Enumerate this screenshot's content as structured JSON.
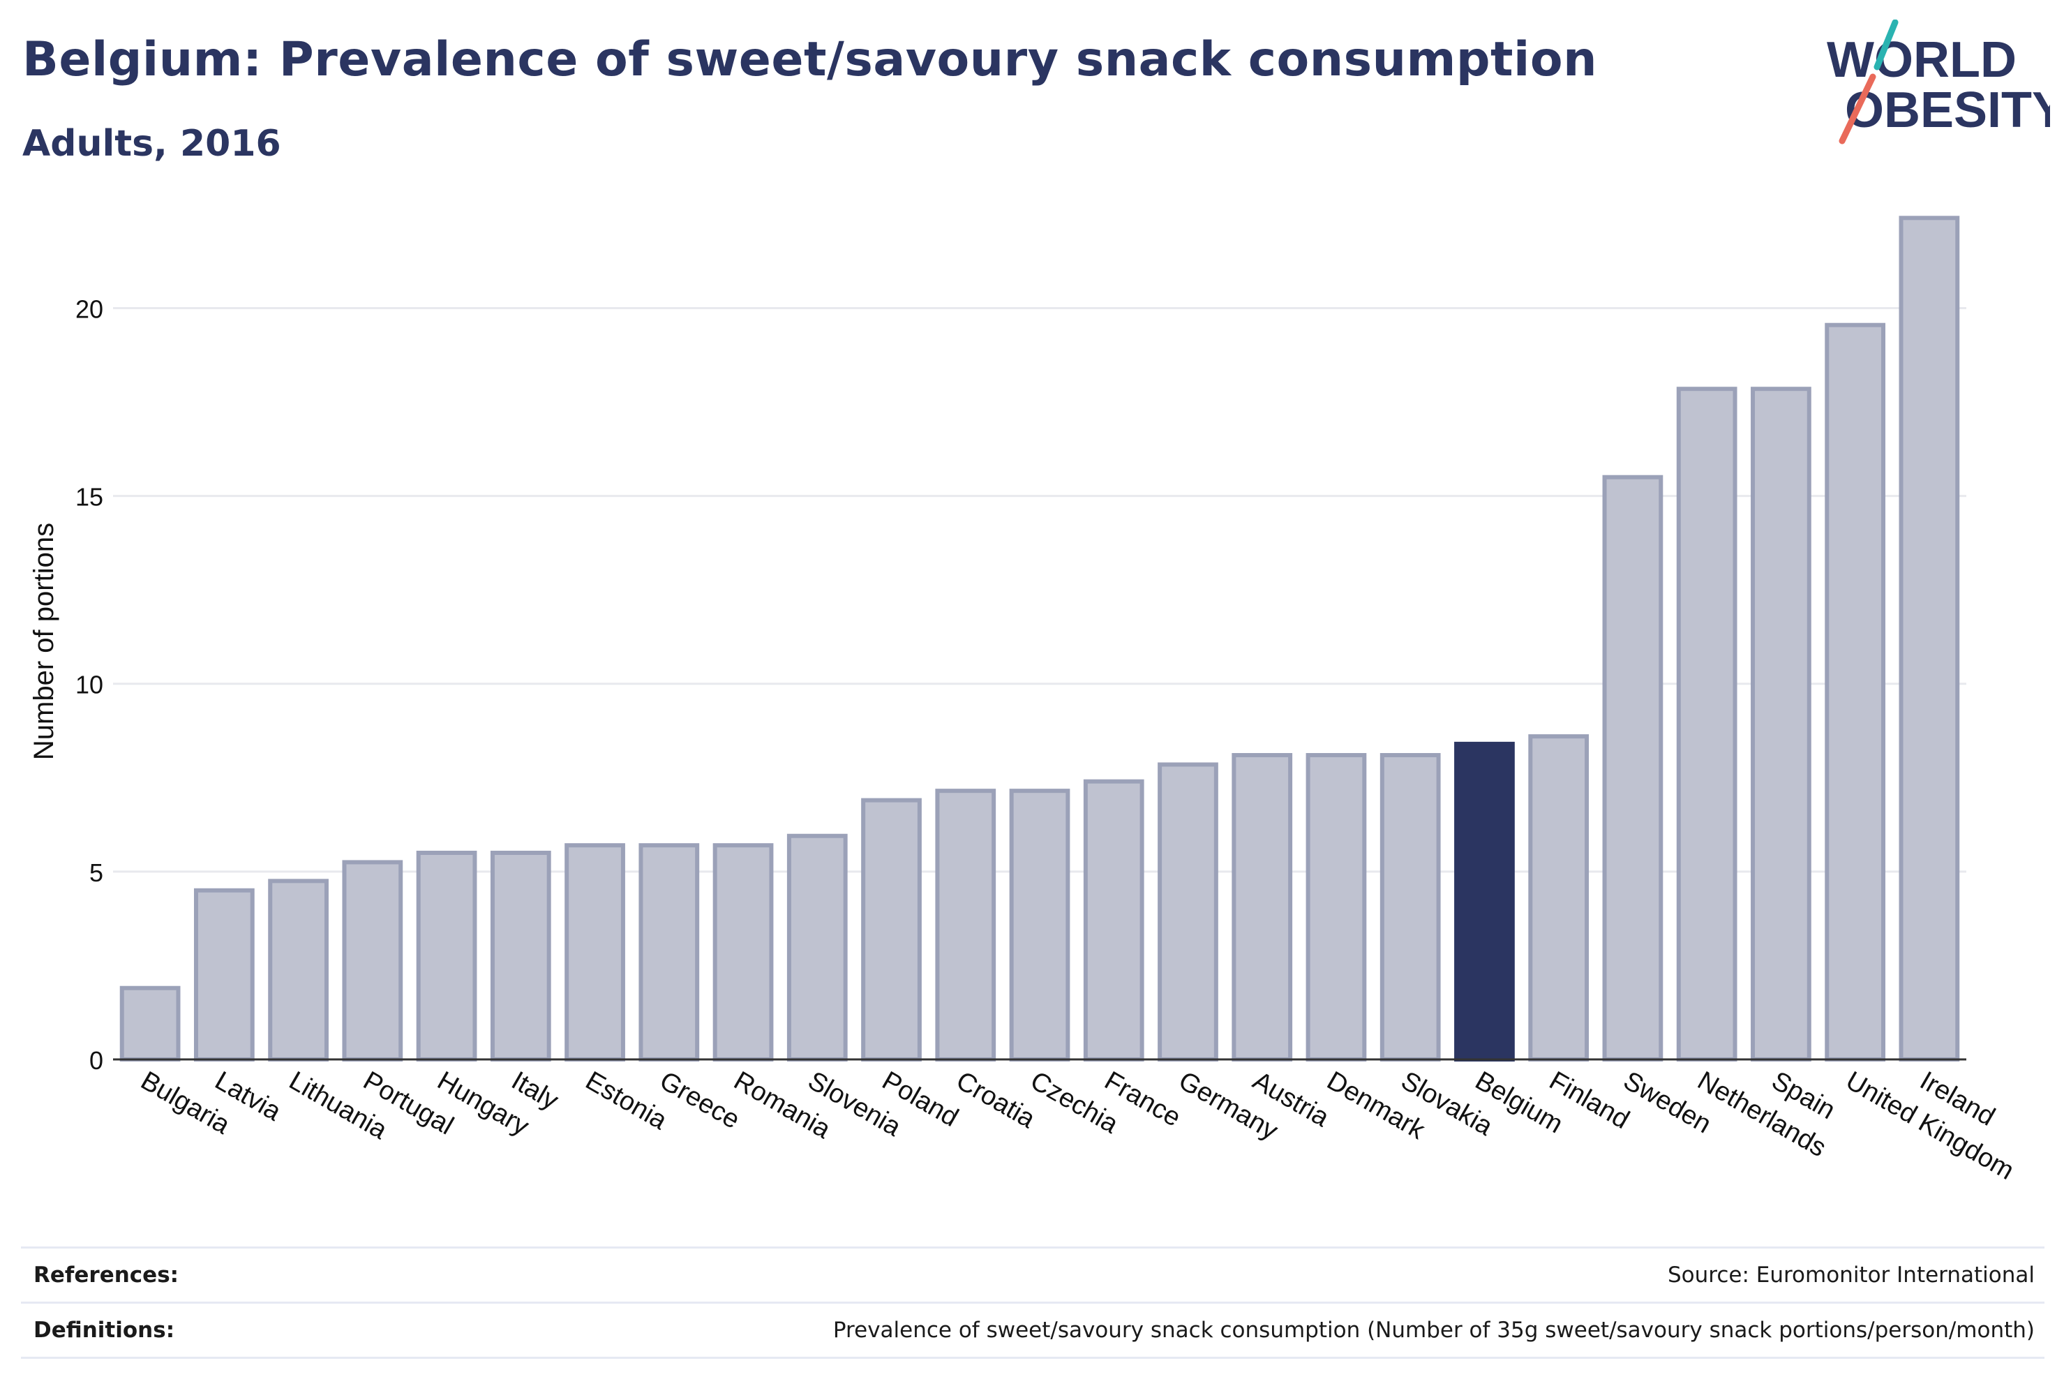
{
  "header": {
    "title": "Belgium: Prevalence of sweet/savoury snack consumption",
    "subtitle": "Adults, 2016"
  },
  "logo": {
    "line1": "WORLD",
    "line2": "OBESITY",
    "text_color": "#2b3561",
    "slash_top_color": "#2ab3b1",
    "slash_bottom_color": "#e96a5a"
  },
  "chart_data": {
    "type": "bar",
    "title": "Belgium: Prevalence of sweet/savoury snack consumption",
    "subtitle": "Adults, 2016",
    "xlabel": "",
    "ylabel": "Number of portions",
    "ylim": [
      0,
      23
    ],
    "yticks": [
      0,
      5,
      10,
      15,
      20
    ],
    "grid": true,
    "categories": [
      "Bulgaria",
      "Latvia",
      "Lithuania",
      "Portugal",
      "Hungary",
      "Italy",
      "Estonia",
      "Greece",
      "Romania",
      "Slovenia",
      "Poland",
      "Croatia",
      "Czechia",
      "France",
      "Germany",
      "Austria",
      "Denmark",
      "Slovakia",
      "Belgium",
      "Finland",
      "Sweden",
      "Netherlands",
      "Spain",
      "United Kingdom",
      "Ireland"
    ],
    "values": [
      1.9,
      4.5,
      4.75,
      5.25,
      5.5,
      5.5,
      5.7,
      5.7,
      5.7,
      5.95,
      6.9,
      7.15,
      7.15,
      7.4,
      7.85,
      8.1,
      8.1,
      8.1,
      8.4,
      8.6,
      15.5,
      17.85,
      17.85,
      19.55,
      22.4
    ],
    "highlight": "Belgium",
    "colors": {
      "bar": "#bfc2d0",
      "bar_edge": "#9ba1b8",
      "highlight": "#2b3561",
      "grid": "#e8e9ee",
      "axis": "#333333"
    }
  },
  "footer": {
    "references_label": "References:",
    "references_value": "Source: Euromonitor International",
    "definitions_label": "Definitions:",
    "definitions_value": "Prevalence of sweet/savoury snack consumption (Number of 35g sweet/savoury snack portions/person/month)"
  }
}
